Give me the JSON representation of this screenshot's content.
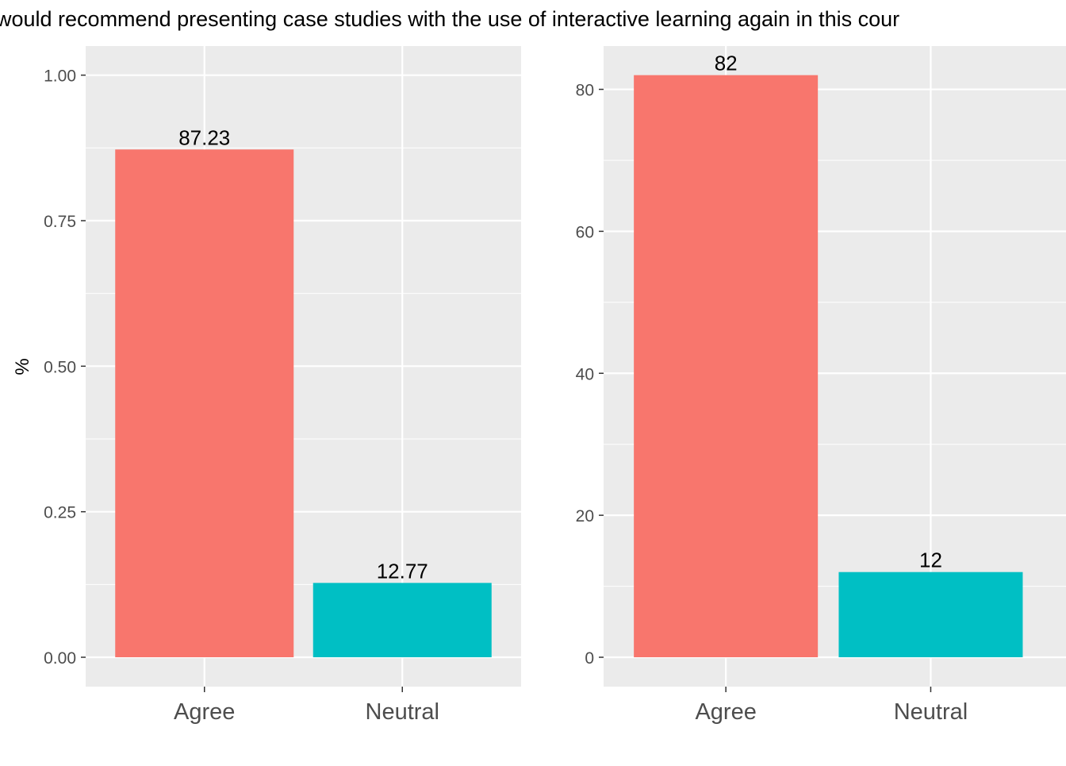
{
  "title": "would recommend presenting case studies with the use of interactive learning again in this cour",
  "colors": {
    "agree": "#F8766D",
    "neutral": "#00BFC4",
    "panel_bg": "#EBEBEB",
    "grid": "#FFFFFF",
    "axis_text": "#4D4D4D",
    "label_text": "#000000"
  },
  "chart_data": [
    {
      "type": "bar",
      "categories": [
        "Agree",
        "Neutral"
      ],
      "values": [
        0.8723,
        0.1277
      ],
      "data_labels": [
        "87.23",
        "12.77"
      ],
      "ylabel": "%",
      "xlabel": "",
      "ylim": [
        0,
        1.05
      ],
      "yticks": [
        0,
        0.25,
        0.5,
        0.75,
        1.0
      ],
      "ytick_labels": [
        "0.00",
        "0.25",
        "0.50",
        "0.75",
        "1.00"
      ],
      "grid": true
    },
    {
      "type": "bar",
      "categories": [
        "Agree",
        "Neutral"
      ],
      "values": [
        82,
        12
      ],
      "data_labels": [
        "82",
        "12"
      ],
      "ylabel": "",
      "xlabel": "",
      "ylim": [
        0,
        86.1
      ],
      "yticks": [
        0,
        20,
        40,
        60,
        80
      ],
      "ytick_labels": [
        "0",
        "20",
        "40",
        "60",
        "80"
      ],
      "grid": true
    }
  ]
}
